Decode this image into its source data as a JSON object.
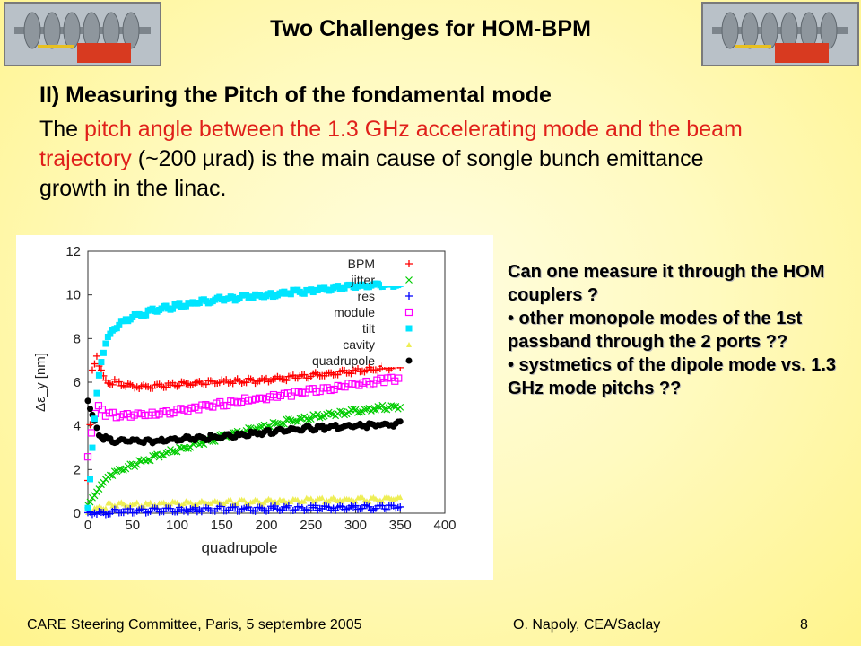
{
  "slide": {
    "title": "Two Challenges for HOM-BPM",
    "heading": "II) Measuring the Pitch of the fondamental mode",
    "paragraph": {
      "p1": "The ",
      "p2": "pitch angle between the 1.3 GHz accelerating mode and the beam trajectory",
      "p3": " (~200 µrad) is the main cause of songle bunch emittance growth in the linac."
    },
    "side": {
      "q1": "Can one measure it through the HOM couplers ?",
      "b1": "• other monopole modes of the 1st passband through the 2 ports ??",
      "b2": "• systmetics of the dipole mode vs. 1.3 GHz mode pitchs ??"
    },
    "footer": {
      "left": "CARE Steering Committee, Paris, 5 septembre 2005",
      "center": "O. Napoly, CEA/Saclay",
      "page": "8"
    }
  },
  "chart_data": {
    "type": "scatter",
    "xlabel": "quadrupole",
    "ylabel": "Δε_y [nm]",
    "xlim": [
      0,
      400
    ],
    "ylim": [
      0,
      12
    ],
    "xticks": [
      0,
      50,
      100,
      150,
      200,
      250,
      300,
      350,
      400
    ],
    "yticks": [
      0,
      2,
      4,
      6,
      8,
      10,
      12
    ],
    "legend_position": "top-right",
    "grid": false,
    "series": [
      {
        "name": "BPM",
        "color": "#ff0000",
        "marker": "plus",
        "x": [
          0,
          5,
          10,
          15,
          20,
          30,
          50,
          75,
          100,
          150,
          200,
          250,
          300,
          350
        ],
        "y": [
          1.5,
          6.5,
          7.2,
          6.5,
          6.0,
          6.0,
          5.8,
          5.8,
          5.9,
          6.0,
          6.1,
          6.3,
          6.5,
          6.7
        ]
      },
      {
        "name": "jitter",
        "color": "#00cc00",
        "marker": "cross",
        "x": [
          0,
          10,
          25,
          50,
          75,
          100,
          150,
          200,
          250,
          300,
          350
        ],
        "y": [
          0.3,
          1.0,
          1.8,
          2.2,
          2.6,
          2.9,
          3.5,
          4.0,
          4.4,
          4.7,
          4.9
        ]
      },
      {
        "name": "res",
        "color": "#0000ff",
        "marker": "plus",
        "x": [
          0,
          50,
          100,
          150,
          200,
          250,
          300,
          350
        ],
        "y": [
          0.0,
          0.1,
          0.15,
          0.2,
          0.2,
          0.25,
          0.25,
          0.3
        ]
      },
      {
        "name": "module",
        "color": "#ff00ff",
        "marker": "square",
        "x": [
          0,
          5,
          10,
          20,
          50,
          100,
          150,
          200,
          250,
          300,
          350
        ],
        "y": [
          2.5,
          4.0,
          5.0,
          4.5,
          4.5,
          4.7,
          5.0,
          5.3,
          5.6,
          5.9,
          6.2
        ]
      },
      {
        "name": "tilt",
        "color": "#00e5ff",
        "marker": "filled-square",
        "x": [
          0,
          5,
          10,
          15,
          20,
          30,
          50,
          75,
          100,
          150,
          200,
          250,
          300,
          350
        ],
        "y": [
          0.3,
          3.0,
          5.5,
          7.0,
          7.8,
          8.5,
          9.0,
          9.3,
          9.5,
          9.8,
          10.0,
          10.2,
          10.4,
          10.5
        ]
      },
      {
        "name": "cavity",
        "color": "#eeee55",
        "marker": "triangle",
        "x": [
          0,
          25,
          50,
          100,
          150,
          200,
          250,
          300,
          350
        ],
        "y": [
          0.1,
          0.4,
          0.4,
          0.45,
          0.5,
          0.55,
          0.6,
          0.65,
          0.7
        ]
      },
      {
        "name": "quadrupole",
        "color": "#000000",
        "marker": "circle",
        "x": [
          0,
          5,
          10,
          15,
          20,
          30,
          50,
          75,
          100,
          150,
          200,
          250,
          300,
          350
        ],
        "y": [
          5.2,
          4.5,
          3.8,
          3.5,
          3.4,
          3.3,
          3.3,
          3.3,
          3.4,
          3.5,
          3.7,
          3.9,
          4.0,
          4.1
        ]
      }
    ]
  }
}
